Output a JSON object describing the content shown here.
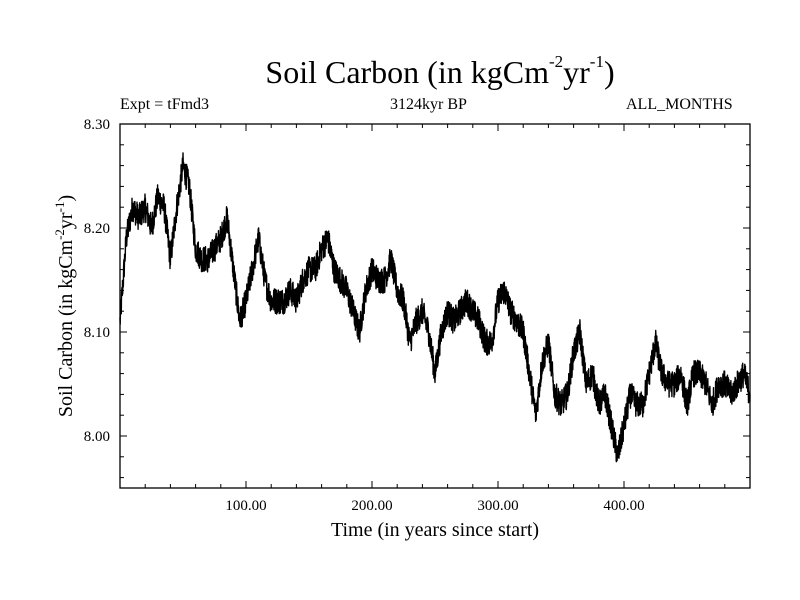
{
  "chart_data": {
    "type": "line",
    "title": {
      "main": "Soil Carbon (in kgCm",
      "sup1": "-2",
      "mid": "yr",
      "sup2": "-1",
      "end": ")"
    },
    "subtitle_left": "Expt = tFmd3",
    "subtitle_center": "3124kyr BP",
    "subtitle_right": "ALL_MONTHS",
    "xlabel": "Time (in years since start)",
    "ylabel": {
      "main": "Soil Carbon (in kgCm",
      "sup1": "-2",
      "mid": "yr",
      "sup2": "-1",
      "end": ")"
    },
    "xlim": [
      0,
      500
    ],
    "ylim": [
      7.95,
      8.3
    ],
    "xticks": [
      100,
      200,
      300,
      400
    ],
    "xtick_labels": [
      "100.00",
      "200.00",
      "300.00",
      "400.00"
    ],
    "yticks": [
      8.0,
      8.1,
      8.2,
      8.3
    ],
    "ytick_labels": [
      "8.00",
      "8.10",
      "8.20",
      "8.30"
    ],
    "grid": false,
    "series": [
      {
        "name": "Soil Carbon",
        "color": "#000000",
        "x": [
          0,
          5,
          10,
          15,
          20,
          25,
          30,
          35,
          40,
          45,
          50,
          55,
          60,
          65,
          70,
          75,
          80,
          85,
          90,
          95,
          100,
          105,
          110,
          115,
          120,
          125,
          130,
          135,
          140,
          145,
          150,
          155,
          160,
          165,
          170,
          175,
          180,
          185,
          190,
          195,
          200,
          205,
          210,
          215,
          220,
          225,
          230,
          235,
          240,
          245,
          250,
          255,
          260,
          265,
          270,
          275,
          280,
          285,
          290,
          295,
          300,
          305,
          310,
          315,
          320,
          325,
          330,
          335,
          340,
          345,
          350,
          355,
          360,
          365,
          370,
          375,
          380,
          385,
          390,
          395,
          400,
          405,
          410,
          415,
          420,
          425,
          430,
          435,
          440,
          445,
          450,
          455,
          460,
          465,
          470,
          475,
          480,
          485,
          490,
          495,
          500
        ],
        "values": [
          8.11,
          8.19,
          8.22,
          8.21,
          8.22,
          8.2,
          8.23,
          8.22,
          8.17,
          8.22,
          8.26,
          8.24,
          8.18,
          8.17,
          8.17,
          8.18,
          8.19,
          8.21,
          8.16,
          8.11,
          8.13,
          8.16,
          8.19,
          8.15,
          8.13,
          8.13,
          8.13,
          8.14,
          8.13,
          8.15,
          8.16,
          8.16,
          8.18,
          8.19,
          8.16,
          8.15,
          8.14,
          8.12,
          8.1,
          8.14,
          8.16,
          8.15,
          8.15,
          8.17,
          8.14,
          8.13,
          8.09,
          8.11,
          8.12,
          8.1,
          8.06,
          8.1,
          8.12,
          8.11,
          8.12,
          8.13,
          8.12,
          8.11,
          8.09,
          8.09,
          8.13,
          8.14,
          8.12,
          8.11,
          8.1,
          8.06,
          8.02,
          8.07,
          8.09,
          8.04,
          8.03,
          8.04,
          8.08,
          8.1,
          8.05,
          8.06,
          8.03,
          8.04,
          8.01,
          7.98,
          8.01,
          8.04,
          8.03,
          8.03,
          8.06,
          8.09,
          8.06,
          8.05,
          8.05,
          8.06,
          8.03,
          8.06,
          8.06,
          8.05,
          8.03,
          8.05,
          8.05,
          8.04,
          8.05,
          8.06,
          8.04
        ]
      }
    ]
  }
}
